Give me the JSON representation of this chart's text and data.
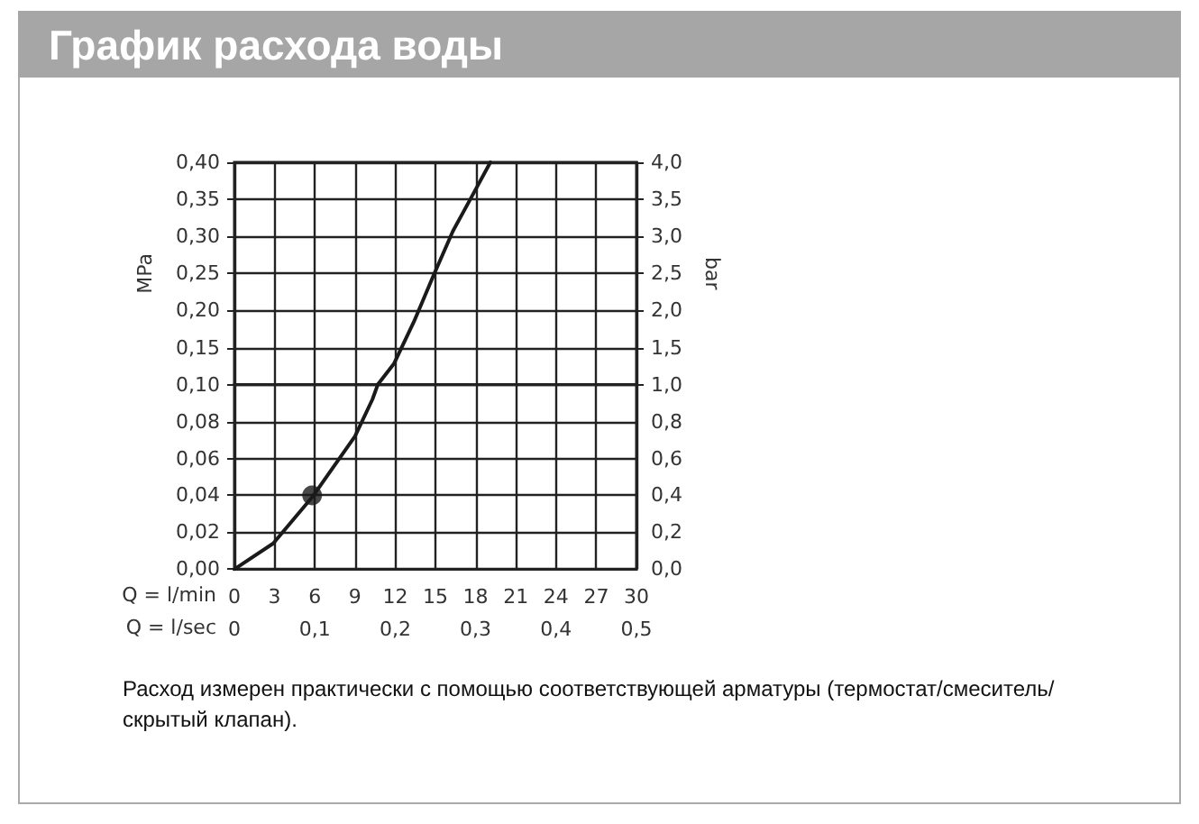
{
  "chart_data": [
    {
      "type": "line",
      "title": "График расхода воды",
      "ylabel": "MPa",
      "y2label": "bar",
      "tick_labels": "y",
      "xlim": [
        0,
        30
      ],
      "xticks": [
        0,
        3,
        6,
        9,
        12,
        15,
        18,
        21,
        24,
        27,
        30
      ],
      "ylim": [
        0.1,
        0.4
      ],
      "yticks": [
        {
          "value": 0.1,
          "label": null
        },
        {
          "value": 0.15,
          "label": "0,15"
        },
        {
          "value": 0.2,
          "label": "0,20"
        },
        {
          "value": 0.25,
          "label": "0,25"
        },
        {
          "value": 0.3,
          "label": "0,30"
        },
        {
          "value": 0.35,
          "label": "0,35"
        },
        {
          "value": 0.4,
          "label": "0,40"
        }
      ],
      "y2lim": [
        1,
        4
      ],
      "y2ticks": [
        {
          "value": 1,
          "label": null
        },
        {
          "value": 1.5,
          "label": "1,5"
        },
        {
          "value": 2,
          "label": "2,0"
        },
        {
          "value": 2.5,
          "label": "2,5"
        },
        {
          "value": 3,
          "label": "3,0"
        },
        {
          "value": 3.5,
          "label": "3,5"
        },
        {
          "value": 4,
          "label": "4,0"
        }
      ],
      "grid": true,
      "series": [
        {
          "color": "#1a1a1a",
          "marker": "none",
          "line_style": "solid",
          "x": [
            10.7,
            11.9,
            13.4,
            14.8,
            16.3,
            17.9,
            19.1
          ],
          "values": [
            0.1,
            0.128,
            0.185,
            0.245,
            0.307,
            0.36,
            0.4
          ]
        }
      ]
    },
    {
      "type": "line",
      "xlabel": "Q = l/min",
      "x2label": "Q = l/sec",
      "annotations": [
        "Расход измерен практически с помощью соответствующей арматуры (термостат/смеситель/скрытый клапан)."
      ],
      "xlim": [
        0,
        30
      ],
      "xticks": [
        0,
        3,
        6,
        9,
        12,
        15,
        18,
        21,
        24,
        27,
        30
      ],
      "x2lim": [
        0,
        0.5
      ],
      "x2ticks": [
        0,
        {
          "value": 0.1,
          "label": "0,1"
        },
        {
          "value": 0.2,
          "label": "0,2"
        },
        {
          "value": 0.3,
          "label": "0,3"
        },
        {
          "value": 0.4,
          "label": "0,4"
        },
        {
          "value": 0.5,
          "label": "0,5"
        }
      ],
      "ylim": [
        0,
        0.1
      ],
      "yticks": [
        {
          "value": 0,
          "label": "0,00"
        },
        {
          "value": 0.02,
          "label": "0,02"
        },
        {
          "value": 0.04,
          "label": "0,04"
        },
        {
          "value": 0.06,
          "label": "0,06"
        },
        {
          "value": 0.08,
          "label": "0,08"
        },
        {
          "value": 0.1,
          "label": "0,10"
        }
      ],
      "y2lim": [
        0,
        1
      ],
      "y2ticks": [
        {
          "value": 0,
          "label": "0,0"
        },
        {
          "value": 0.2,
          "label": "0,2"
        },
        {
          "value": 0.4,
          "label": "0,4"
        },
        {
          "value": 0.6,
          "label": "0,6"
        },
        {
          "value": 0.8,
          "label": "0,8"
        },
        {
          "value": 1,
          "label": "1,0"
        }
      ],
      "grid": true,
      "series": [
        {
          "color": "#1a1a1a",
          "marker": "none",
          "line_style": "solid",
          "x": [
            0,
            2.9,
            5.8,
            9,
            10.3,
            10.7
          ],
          "values": [
            0,
            0.014,
            0.039,
            0.072,
            0.092,
            0.1
          ]
        },
        {
          "type": "scatter",
          "color": "#1a1a1a",
          "marker": "circle",
          "x": [
            5.8
          ],
          "values": [
            0.04
          ]
        }
      ]
    }
  ]
}
